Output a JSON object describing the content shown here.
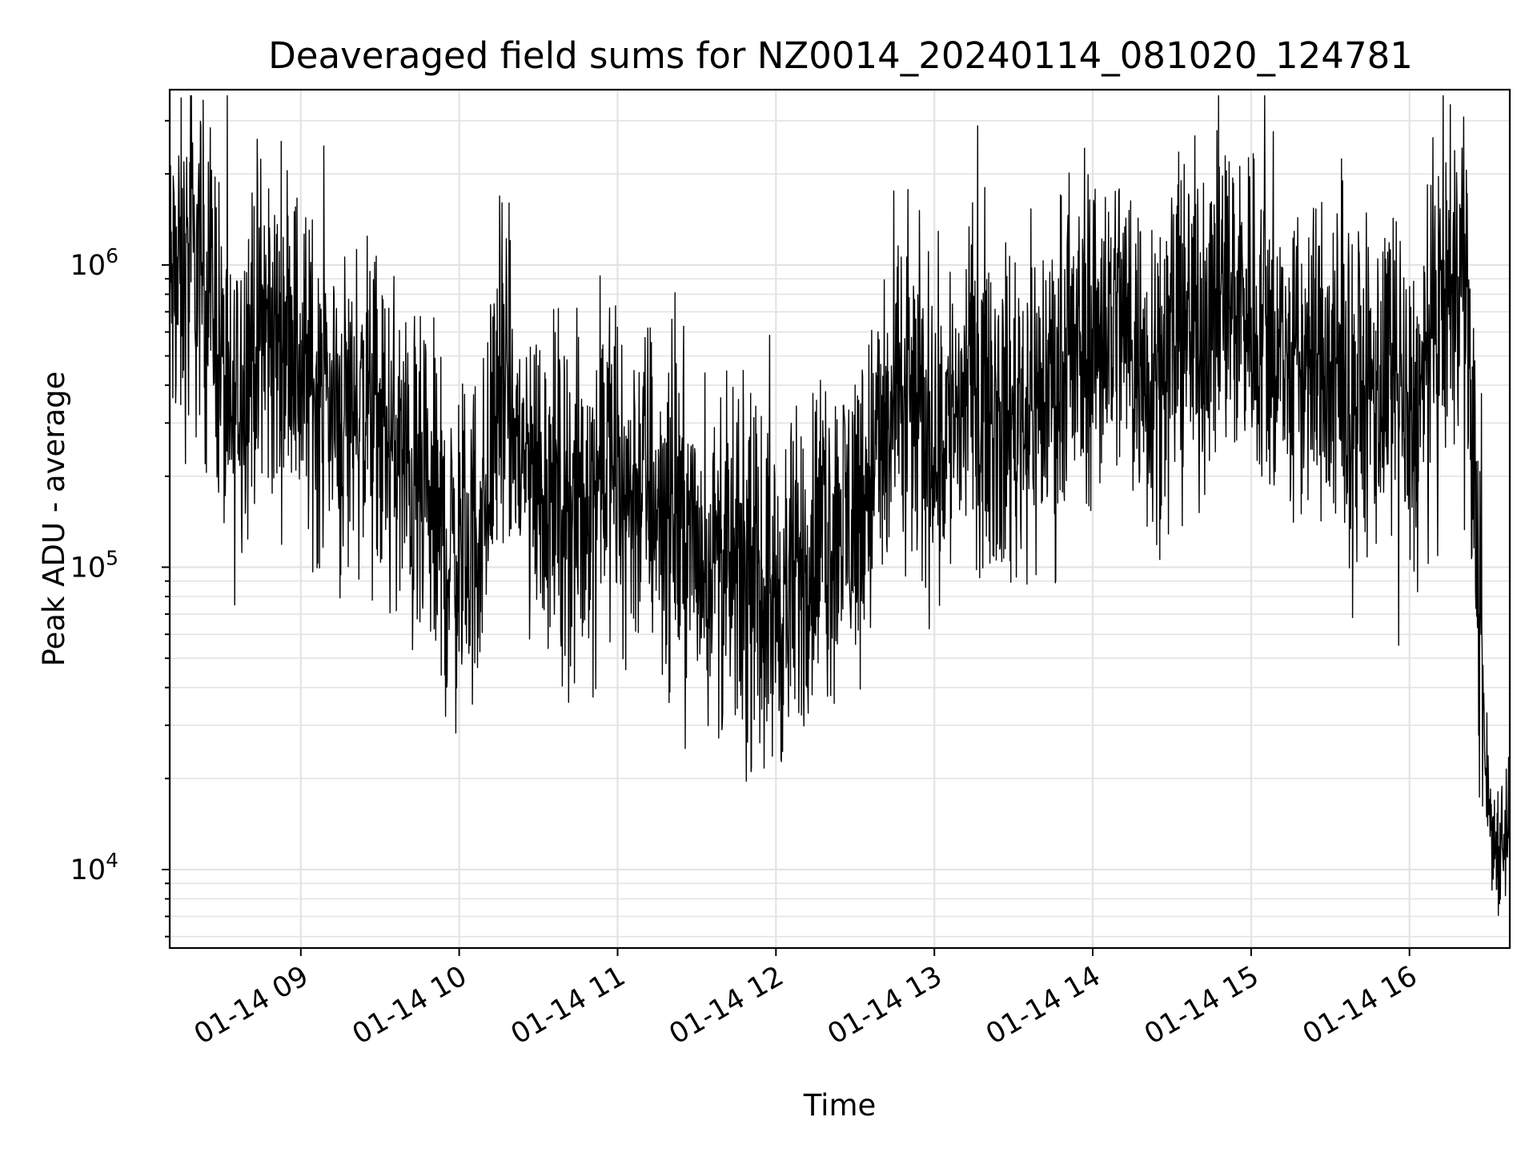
{
  "chart_data": {
    "type": "line",
    "title": "Deaveraged field sums for NZ0014_20240114_081020_124781",
    "xlabel": "Time",
    "ylabel": "Peak ADU - average",
    "yscale": "log",
    "ylim": [
      5500,
      3800000
    ],
    "xlim": [
      "2024-01-14T08:10:20",
      "2024-01-14T16:38:00"
    ],
    "grid": true,
    "line_color": "#000000",
    "x_ticks": [
      {
        "time": "2024-01-14T09:00:00",
        "label": "01-14 09"
      },
      {
        "time": "2024-01-14T10:00:00",
        "label": "01-14 10"
      },
      {
        "time": "2024-01-14T11:00:00",
        "label": "01-14 11"
      },
      {
        "time": "2024-01-14T12:00:00",
        "label": "01-14 12"
      },
      {
        "time": "2024-01-14T13:00:00",
        "label": "01-14 13"
      },
      {
        "time": "2024-01-14T14:00:00",
        "label": "01-14 14"
      },
      {
        "time": "2024-01-14T15:00:00",
        "label": "01-14 15"
      },
      {
        "time": "2024-01-14T16:00:00",
        "label": "01-14 16"
      }
    ],
    "y_ticks": [
      {
        "value": 10000,
        "base": "10",
        "exp": "4"
      },
      {
        "value": 100000,
        "base": "10",
        "exp": "5"
      },
      {
        "value": 1000000,
        "base": "10",
        "exp": "6"
      }
    ],
    "series": [
      {
        "x": [
          "2024-01-14T08:10:20",
          "2024-01-14T08:16:00",
          "2024-01-14T08:22:00",
          "2024-01-14T08:28:00",
          "2024-01-14T08:33:00",
          "2024-01-14T08:36:00",
          "2024-01-14T08:40:00",
          "2024-01-14T08:45:00",
          "2024-01-14T08:50:00",
          "2024-01-14T08:55:00",
          "2024-01-14T09:00:00",
          "2024-01-14T09:05:00",
          "2024-01-14T09:10:00",
          "2024-01-14T09:15:00",
          "2024-01-14T09:20:00",
          "2024-01-14T09:25:00",
          "2024-01-14T09:30:00",
          "2024-01-14T09:35:00",
          "2024-01-14T09:40:00",
          "2024-01-14T09:45:00",
          "2024-01-14T09:50:00",
          "2024-01-14T09:55:00",
          "2024-01-14T10:00:00",
          "2024-01-14T10:05:00",
          "2024-01-14T10:10:00",
          "2024-01-14T10:15:00",
          "2024-01-14T10:20:00",
          "2024-01-14T10:25:00",
          "2024-01-14T10:30:00",
          "2024-01-14T10:35:00",
          "2024-01-14T10:40:00",
          "2024-01-14T10:45:00",
          "2024-01-14T10:50:00",
          "2024-01-14T10:55:00",
          "2024-01-14T11:00:00",
          "2024-01-14T11:05:00",
          "2024-01-14T11:10:00",
          "2024-01-14T11:15:00",
          "2024-01-14T11:20:00",
          "2024-01-14T11:25:00",
          "2024-01-14T11:30:00",
          "2024-01-14T11:35:00",
          "2024-01-14T11:40:00",
          "2024-01-14T11:45:00",
          "2024-01-14T11:50:00",
          "2024-01-14T11:55:00",
          "2024-01-14T12:00:00",
          "2024-01-14T12:05:00",
          "2024-01-14T12:10:00",
          "2024-01-14T12:15:00",
          "2024-01-14T12:20:00",
          "2024-01-14T12:25:00",
          "2024-01-14T12:30:00",
          "2024-01-14T12:35:00",
          "2024-01-14T12:40:00",
          "2024-01-14T12:45:00",
          "2024-01-14T12:50:00",
          "2024-01-14T12:55:00",
          "2024-01-14T13:00:00",
          "2024-01-14T13:05:00",
          "2024-01-14T13:10:00",
          "2024-01-14T13:15:00",
          "2024-01-14T13:20:00",
          "2024-01-14T13:25:00",
          "2024-01-14T13:30:00",
          "2024-01-14T13:35:00",
          "2024-01-14T13:40:00",
          "2024-01-14T13:45:00",
          "2024-01-14T13:50:00",
          "2024-01-14T13:55:00",
          "2024-01-14T14:00:00",
          "2024-01-14T14:05:00",
          "2024-01-14T14:10:00",
          "2024-01-14T14:15:00",
          "2024-01-14T14:20:00",
          "2024-01-14T14:25:00",
          "2024-01-14T14:30:00",
          "2024-01-14T14:35:00",
          "2024-01-14T14:40:00",
          "2024-01-14T14:45:00",
          "2024-01-14T14:50:00",
          "2024-01-14T14:55:00",
          "2024-01-14T15:00:00",
          "2024-01-14T15:05:00",
          "2024-01-14T15:10:00",
          "2024-01-14T15:15:00",
          "2024-01-14T15:20:00",
          "2024-01-14T15:25:00",
          "2024-01-14T15:30:00",
          "2024-01-14T15:35:00",
          "2024-01-14T15:40:00",
          "2024-01-14T15:45:00",
          "2024-01-14T15:50:00",
          "2024-01-14T15:55:00",
          "2024-01-14T16:00:00",
          "2024-01-14T16:05:00",
          "2024-01-14T16:10:00",
          "2024-01-14T16:15:00",
          "2024-01-14T16:20:00",
          "2024-01-14T16:23:00",
          "2024-01-14T16:26:00",
          "2024-01-14T16:29:00",
          "2024-01-14T16:32:00",
          "2024-01-14T16:35:00",
          "2024-01-14T16:38:00"
        ],
        "y": [
          800000,
          900000,
          1000000,
          700000,
          250000,
          400000,
          500000,
          600000,
          550000,
          650000,
          450000,
          400000,
          380000,
          300000,
          350000,
          320000,
          280000,
          250000,
          200000,
          160000,
          150000,
          110000,
          110000,
          120000,
          150000,
          450000,
          280000,
          220000,
          200000,
          180000,
          160000,
          150000,
          170000,
          250000,
          180000,
          170000,
          200000,
          160000,
          150000,
          140000,
          110000,
          105000,
          100000,
          90000,
          85000,
          80000,
          75000,
          78000,
          100000,
          120000,
          130000,
          140000,
          150000,
          200000,
          250000,
          300000,
          350000,
          300000,
          260000,
          300000,
          350000,
          400000,
          380000,
          300000,
          320000,
          350000,
          360000,
          420000,
          400000,
          500000,
          600000,
          650000,
          700000,
          550000,
          450000,
          500000,
          550000,
          600000,
          650000,
          700000,
          750000,
          800000,
          700000,
          600000,
          500000,
          450000,
          450000,
          500000,
          400000,
          350000,
          350000,
          380000,
          400000,
          330000,
          300000,
          350000,
          600000,
          800000,
          900000,
          400000,
          100000,
          20000,
          12000,
          13000,
          14000
        ]
      }
    ]
  }
}
